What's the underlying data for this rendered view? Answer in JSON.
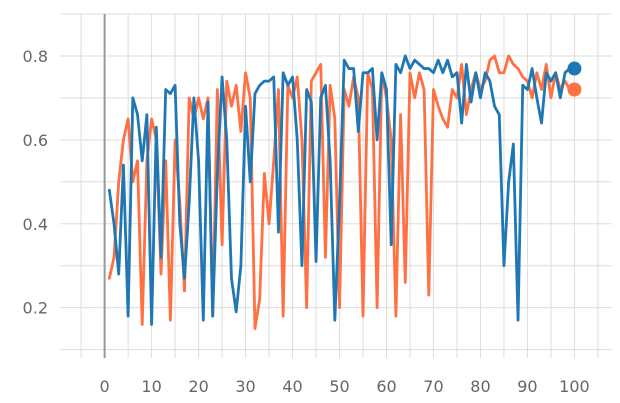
{
  "chart_data": {
    "type": "line",
    "title": "",
    "xlabel": "",
    "ylabel": "",
    "xlim": [
      -9.5,
      108
    ],
    "ylim": [
      0.08,
      0.9
    ],
    "x_ticks": [
      0,
      10,
      20,
      30,
      40,
      50,
      60,
      70,
      80,
      90,
      100
    ],
    "y_ticks": [
      0.2,
      0.4,
      0.6,
      0.8
    ],
    "grid": true,
    "legend": "none",
    "series": [
      {
        "color": "#ff7043",
        "end_marker": true,
        "points": [
          [
            1,
            0.27
          ],
          [
            2,
            0.32
          ],
          [
            3,
            0.5
          ],
          [
            4,
            0.6
          ],
          [
            5,
            0.65
          ],
          [
            6,
            0.5
          ],
          [
            7,
            0.55
          ],
          [
            8,
            0.16
          ],
          [
            9,
            0.55
          ],
          [
            10,
            0.65
          ],
          [
            11,
            0.6
          ],
          [
            12,
            0.28
          ],
          [
            13,
            0.55
          ],
          [
            14,
            0.17
          ],
          [
            15,
            0.6
          ],
          [
            16,
            0.45
          ],
          [
            17,
            0.24
          ],
          [
            18,
            0.7
          ],
          [
            19,
            0.65
          ],
          [
            20,
            0.7
          ],
          [
            21,
            0.65
          ],
          [
            22,
            0.7
          ],
          [
            23,
            0.18
          ],
          [
            24,
            0.72
          ],
          [
            25,
            0.35
          ],
          [
            26,
            0.74
          ],
          [
            27,
            0.68
          ],
          [
            28,
            0.73
          ],
          [
            29,
            0.62
          ],
          [
            30,
            0.76
          ],
          [
            31,
            0.7
          ],
          [
            32,
            0.15
          ],
          [
            33,
            0.22
          ],
          [
            34,
            0.52
          ],
          [
            35,
            0.4
          ],
          [
            36,
            0.55
          ],
          [
            37,
            0.72
          ],
          [
            38,
            0.18
          ],
          [
            39,
            0.73
          ],
          [
            40,
            0.7
          ],
          [
            41,
            0.75
          ],
          [
            42,
            0.6
          ],
          [
            43,
            0.2
          ],
          [
            44,
            0.74
          ],
          [
            45,
            0.76
          ],
          [
            46,
            0.78
          ],
          [
            47,
            0.32
          ],
          [
            48,
            0.73
          ],
          [
            49,
            0.65
          ],
          [
            50,
            0.2
          ],
          [
            51,
            0.72
          ],
          [
            52,
            0.68
          ],
          [
            53,
            0.75
          ],
          [
            54,
            0.7
          ],
          [
            55,
            0.18
          ],
          [
            56,
            0.76
          ],
          [
            57,
            0.72
          ],
          [
            58,
            0.2
          ],
          [
            59,
            0.76
          ],
          [
            60,
            0.7
          ],
          [
            61,
            0.6
          ],
          [
            62,
            0.18
          ],
          [
            63,
            0.66
          ],
          [
            64,
            0.26
          ],
          [
            65,
            0.76
          ],
          [
            66,
            0.7
          ],
          [
            67,
            0.76
          ],
          [
            68,
            0.72
          ],
          [
            69,
            0.23
          ],
          [
            70,
            0.72
          ],
          [
            71,
            0.68
          ],
          [
            72,
            0.65
          ],
          [
            73,
            0.63
          ],
          [
            74,
            0.72
          ],
          [
            75,
            0.7
          ],
          [
            76,
            0.78
          ],
          [
            77,
            0.66
          ],
          [
            78,
            0.72
          ],
          [
            79,
            0.76
          ],
          [
            80,
            0.72
          ],
          [
            81,
            0.74
          ],
          [
            82,
            0.79
          ],
          [
            83,
            0.8
          ],
          [
            84,
            0.76
          ],
          [
            85,
            0.76
          ],
          [
            86,
            0.8
          ],
          [
            87,
            0.78
          ],
          [
            88,
            0.77
          ],
          [
            89,
            0.75
          ],
          [
            90,
            0.74
          ],
          [
            91,
            0.7
          ],
          [
            92,
            0.76
          ],
          [
            93,
            0.72
          ],
          [
            94,
            0.78
          ],
          [
            95,
            0.7
          ],
          [
            96,
            0.76
          ],
          [
            97,
            0.72
          ],
          [
            98,
            0.74
          ],
          [
            99,
            0.72
          ],
          [
            100,
            0.72
          ]
        ]
      },
      {
        "color": "#1f77b4",
        "end_marker": true,
        "points": [
          [
            1,
            0.48
          ],
          [
            2,
            0.4
          ],
          [
            3,
            0.28
          ],
          [
            4,
            0.54
          ],
          [
            5,
            0.18
          ],
          [
            6,
            0.7
          ],
          [
            7,
            0.66
          ],
          [
            8,
            0.55
          ],
          [
            9,
            0.66
          ],
          [
            10,
            0.16
          ],
          [
            11,
            0.63
          ],
          [
            12,
            0.32
          ],
          [
            13,
            0.72
          ],
          [
            14,
            0.71
          ],
          [
            15,
            0.73
          ],
          [
            16,
            0.4
          ],
          [
            17,
            0.27
          ],
          [
            18,
            0.45
          ],
          [
            19,
            0.7
          ],
          [
            20,
            0.55
          ],
          [
            21,
            0.17
          ],
          [
            22,
            0.69
          ],
          [
            23,
            0.18
          ],
          [
            24,
            0.52
          ],
          [
            25,
            0.75
          ],
          [
            26,
            0.6
          ],
          [
            27,
            0.27
          ],
          [
            28,
            0.19
          ],
          [
            29,
            0.3
          ],
          [
            30,
            0.68
          ],
          [
            31,
            0.5
          ],
          [
            32,
            0.71
          ],
          [
            33,
            0.73
          ],
          [
            34,
            0.74
          ],
          [
            35,
            0.74
          ],
          [
            36,
            0.75
          ],
          [
            37,
            0.38
          ],
          [
            38,
            0.76
          ],
          [
            39,
            0.73
          ],
          [
            40,
            0.75
          ],
          [
            41,
            0.6
          ],
          [
            42,
            0.3
          ],
          [
            43,
            0.72
          ],
          [
            44,
            0.69
          ],
          [
            45,
            0.31
          ],
          [
            46,
            0.7
          ],
          [
            47,
            0.73
          ],
          [
            48,
            0.55
          ],
          [
            49,
            0.17
          ],
          [
            50,
            0.45
          ],
          [
            51,
            0.79
          ],
          [
            52,
            0.77
          ],
          [
            53,
            0.77
          ],
          [
            54,
            0.62
          ],
          [
            55,
            0.76
          ],
          [
            56,
            0.76
          ],
          [
            57,
            0.77
          ],
          [
            58,
            0.6
          ],
          [
            59,
            0.76
          ],
          [
            60,
            0.72
          ],
          [
            61,
            0.35
          ],
          [
            62,
            0.78
          ],
          [
            63,
            0.76
          ],
          [
            64,
            0.8
          ],
          [
            65,
            0.77
          ],
          [
            66,
            0.79
          ],
          [
            67,
            0.78
          ],
          [
            68,
            0.77
          ],
          [
            69,
            0.77
          ],
          [
            70,
            0.76
          ],
          [
            71,
            0.79
          ],
          [
            72,
            0.76
          ],
          [
            73,
            0.79
          ],
          [
            74,
            0.75
          ],
          [
            75,
            0.76
          ],
          [
            76,
            0.64
          ],
          [
            77,
            0.78
          ],
          [
            78,
            0.69
          ],
          [
            79,
            0.76
          ],
          [
            80,
            0.7
          ],
          [
            81,
            0.76
          ],
          [
            82,
            0.74
          ],
          [
            83,
            0.68
          ],
          [
            84,
            0.66
          ],
          [
            85,
            0.3
          ],
          [
            86,
            0.5
          ],
          [
            87,
            0.59
          ],
          [
            88,
            0.17
          ],
          [
            89,
            0.73
          ],
          [
            90,
            0.72
          ],
          [
            91,
            0.77
          ],
          [
            92,
            0.7
          ],
          [
            93,
            0.64
          ],
          [
            94,
            0.76
          ],
          [
            95,
            0.74
          ],
          [
            96,
            0.76
          ],
          [
            97,
            0.7
          ],
          [
            98,
            0.76
          ],
          [
            99,
            0.77
          ],
          [
            100,
            0.77
          ]
        ]
      }
    ]
  }
}
